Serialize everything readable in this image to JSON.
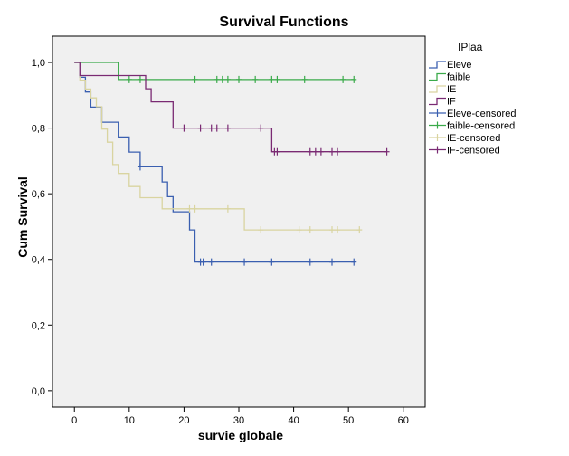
{
  "chart_data": {
    "type": "line",
    "title": "Survival Functions",
    "xlabel": "survie globale",
    "ylabel": "Cum Survival",
    "xlim": [
      -4,
      64
    ],
    "ylim": [
      -0.05,
      1.08
    ],
    "x_ticks": [
      0,
      10,
      20,
      30,
      40,
      50,
      60
    ],
    "x_tick_labels": [
      "0",
      "10",
      "20",
      "30",
      "40",
      "50",
      "60"
    ],
    "y_ticks": [
      0,
      0.2,
      0.4,
      0.6,
      0.8,
      1.0
    ],
    "y_tick_labels": [
      "0,0",
      "0,2",
      "0,4",
      "0,6",
      "0,8",
      "1,0"
    ],
    "legend_title": "IPlaa",
    "legend_position": "right",
    "legend_entries": [
      {
        "label": "Eleve",
        "series": "Eleve",
        "kind": "line"
      },
      {
        "label": "faible",
        "series": "faible",
        "kind": "line"
      },
      {
        "label": "IE",
        "series": "IE",
        "kind": "line"
      },
      {
        "label": "IF",
        "series": "IF",
        "kind": "line"
      },
      {
        "label": "Eleve-censored",
        "series": "Eleve",
        "kind": "censor"
      },
      {
        "label": "faible-censored",
        "series": "faible",
        "kind": "censor"
      },
      {
        "label": "IE-censored",
        "series": "IE",
        "kind": "censor"
      },
      {
        "label": "IF-censored",
        "series": "IF",
        "kind": "censor"
      }
    ],
    "series": [
      {
        "name": "Eleve",
        "color": "#3a5fb0",
        "steps": [
          [
            0,
            1.0
          ],
          [
            1,
            0.955
          ],
          [
            2,
            0.91
          ],
          [
            3,
            0.864
          ],
          [
            5,
            0.818
          ],
          [
            6.5,
            0.818
          ],
          [
            8,
            0.773
          ],
          [
            10,
            0.727
          ],
          [
            12,
            0.682
          ],
          [
            16,
            0.636
          ],
          [
            17,
            0.591
          ],
          [
            18,
            0.545
          ],
          [
            21,
            0.49
          ],
          [
            22,
            0.392
          ],
          [
            51,
            0.392
          ]
        ],
        "censored": [
          [
            12,
            0.682
          ],
          [
            23,
            0.392
          ],
          [
            23.5,
            0.392
          ],
          [
            25,
            0.392
          ],
          [
            31,
            0.392
          ],
          [
            36,
            0.392
          ],
          [
            43,
            0.392
          ],
          [
            47,
            0.392
          ],
          [
            51,
            0.392
          ]
        ]
      },
      {
        "name": "faible",
        "color": "#3aaa4a",
        "steps": [
          [
            0,
            1.0
          ],
          [
            8,
            0.948
          ],
          [
            51,
            0.948
          ]
        ],
        "censored": [
          [
            10,
            0.948
          ],
          [
            12,
            0.948
          ],
          [
            22,
            0.948
          ],
          [
            26,
            0.948
          ],
          [
            27,
            0.948
          ],
          [
            28,
            0.948
          ],
          [
            30,
            0.948
          ],
          [
            33,
            0.948
          ],
          [
            36,
            0.948
          ],
          [
            37,
            0.948
          ],
          [
            42,
            0.948
          ],
          [
            49,
            0.948
          ],
          [
            51,
            0.948
          ]
        ]
      },
      {
        "name": "IE",
        "color": "#d9d4a0",
        "steps": [
          [
            0,
            1.0
          ],
          [
            1,
            0.946
          ],
          [
            2,
            0.919
          ],
          [
            3,
            0.892
          ],
          [
            4,
            0.865
          ],
          [
            5,
            0.797
          ],
          [
            6,
            0.757
          ],
          [
            7,
            0.689
          ],
          [
            8,
            0.662
          ],
          [
            10,
            0.622
          ],
          [
            12,
            0.588
          ],
          [
            16,
            0.554
          ],
          [
            31,
            0.49
          ],
          [
            52,
            0.49
          ]
        ],
        "censored": [
          [
            21,
            0.554
          ],
          [
            22,
            0.554
          ],
          [
            28,
            0.554
          ],
          [
            34,
            0.49
          ],
          [
            41,
            0.49
          ],
          [
            43,
            0.49
          ],
          [
            47,
            0.49
          ],
          [
            48,
            0.49
          ],
          [
            52,
            0.49
          ]
        ]
      },
      {
        "name": "IF",
        "color": "#7a2a73",
        "steps": [
          [
            0,
            1.0
          ],
          [
            1,
            0.96
          ],
          [
            13,
            0.92
          ],
          [
            14,
            0.88
          ],
          [
            18,
            0.8
          ],
          [
            36,
            0.728
          ],
          [
            57,
            0.728
          ]
        ],
        "censored": [
          [
            20,
            0.8
          ],
          [
            23,
            0.8
          ],
          [
            25,
            0.8
          ],
          [
            26,
            0.8
          ],
          [
            28,
            0.8
          ],
          [
            34,
            0.8
          ],
          [
            36.5,
            0.728
          ],
          [
            37,
            0.728
          ],
          [
            43,
            0.728
          ],
          [
            44,
            0.728
          ],
          [
            45,
            0.728
          ],
          [
            47,
            0.728
          ],
          [
            48,
            0.728
          ],
          [
            57,
            0.728
          ]
        ]
      }
    ]
  }
}
